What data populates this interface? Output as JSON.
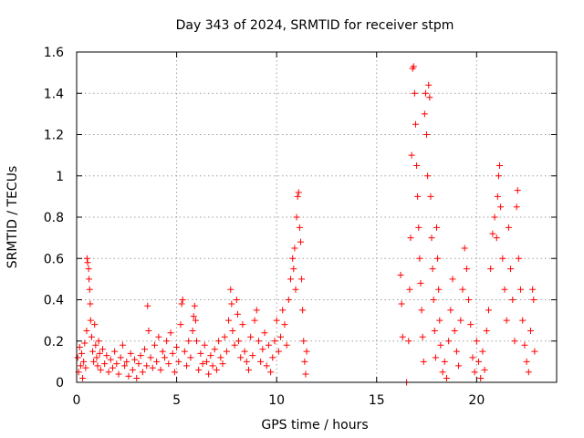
{
  "chart_data": {
    "type": "scatter",
    "title": "Day 343 of 2024, SRMTID for receiver stpm",
    "xlabel": "GPS time / hours",
    "ylabel": "SRMTID / TECUs",
    "xlim": [
      0,
      24
    ],
    "ylim": [
      0,
      1.6
    ],
    "xticks": [
      0,
      5,
      10,
      15,
      20
    ],
    "xtick_labels": [
      "0",
      "5",
      "10",
      "15",
      "20"
    ],
    "yticks": [
      0,
      0.2,
      0.4,
      0.6,
      0.8,
      1,
      1.2,
      1.4,
      1.6
    ],
    "ytick_labels": [
      "0",
      "0.2",
      "0.4",
      "0.6",
      "0.8",
      "1",
      "1.2",
      "1.4",
      "1.6"
    ],
    "grid": true,
    "marker": "plus",
    "color": "#ff0000",
    "series": [
      {
        "name": "SRMTID",
        "points": [
          [
            0.05,
            0.12
          ],
          [
            0.1,
            0.05
          ],
          [
            0.15,
            0.17
          ],
          [
            0.2,
            0.08
          ],
          [
            0.25,
            0.14
          ],
          [
            0.3,
            0.02
          ],
          [
            0.35,
            0.1
          ],
          [
            0.4,
            0.19
          ],
          [
            0.45,
            0.07
          ],
          [
            0.5,
            0.25
          ],
          [
            0.52,
            0.6
          ],
          [
            0.55,
            0.58
          ],
          [
            0.6,
            0.55
          ],
          [
            0.62,
            0.5
          ],
          [
            0.65,
            0.45
          ],
          [
            0.68,
            0.38
          ],
          [
            0.7,
            0.3
          ],
          [
            0.75,
            0.22
          ],
          [
            0.8,
            0.15
          ],
          [
            0.85,
            0.1
          ],
          [
            0.9,
            0.28
          ],
          [
            0.95,
            0.18
          ],
          [
            1.0,
            0.12
          ],
          [
            1.05,
            0.08
          ],
          [
            1.1,
            0.2
          ],
          [
            1.15,
            0.14
          ],
          [
            1.2,
            0.06
          ],
          [
            1.3,
            0.16
          ],
          [
            1.4,
            0.09
          ],
          [
            1.5,
            0.13
          ],
          [
            1.6,
            0.05
          ],
          [
            1.7,
            0.11
          ],
          [
            1.8,
            0.07
          ],
          [
            1.9,
            0.15
          ],
          [
            2.0,
            0.09
          ],
          [
            2.1,
            0.04
          ],
          [
            2.2,
            0.12
          ],
          [
            2.3,
            0.18
          ],
          [
            2.4,
            0.08
          ],
          [
            2.5,
            0.1
          ],
          [
            2.6,
            0.03
          ],
          [
            2.7,
            0.14
          ],
          [
            2.8,
            0.06
          ],
          [
            2.9,
            0.11
          ],
          [
            3.0,
            0.02
          ],
          [
            3.1,
            0.09
          ],
          [
            3.2,
            0.13
          ],
          [
            3.3,
            0.05
          ],
          [
            3.4,
            0.16
          ],
          [
            3.5,
            0.08
          ],
          [
            3.55,
            0.37
          ],
          [
            3.6,
            0.25
          ],
          [
            3.7,
            0.12
          ],
          [
            3.8,
            0.07
          ],
          [
            3.9,
            0.18
          ],
          [
            4.0,
            0.1
          ],
          [
            4.1,
            0.22
          ],
          [
            4.2,
            0.06
          ],
          [
            4.3,
            0.15
          ],
          [
            4.4,
            0.12
          ],
          [
            4.5,
            0.2
          ],
          [
            4.6,
            0.09
          ],
          [
            4.7,
            0.24
          ],
          [
            4.8,
            0.14
          ],
          [
            4.9,
            0.05
          ],
          [
            5.0,
            0.17
          ],
          [
            5.1,
            0.1
          ],
          [
            5.2,
            0.28
          ],
          [
            5.25,
            0.38
          ],
          [
            5.3,
            0.4
          ],
          [
            5.4,
            0.15
          ],
          [
            5.5,
            0.08
          ],
          [
            5.6,
            0.2
          ],
          [
            5.7,
            0.12
          ],
          [
            5.8,
            0.25
          ],
          [
            5.85,
            0.32
          ],
          [
            5.9,
            0.37
          ],
          [
            5.95,
            0.3
          ],
          [
            6.0,
            0.2
          ],
          [
            6.1,
            0.06
          ],
          [
            6.2,
            0.14
          ],
          [
            6.3,
            0.09
          ],
          [
            6.4,
            0.18
          ],
          [
            6.5,
            0.1
          ],
          [
            6.6,
            0.04
          ],
          [
            6.7,
            0.13
          ],
          [
            6.8,
            0.08
          ],
          [
            6.9,
            0.16
          ],
          [
            7.0,
            0.06
          ],
          [
            7.1,
            0.2
          ],
          [
            7.2,
            0.12
          ],
          [
            7.3,
            0.09
          ],
          [
            7.4,
            0.22
          ],
          [
            7.5,
            0.15
          ],
          [
            7.6,
            0.3
          ],
          [
            7.7,
            0.45
          ],
          [
            7.75,
            0.38
          ],
          [
            7.8,
            0.25
          ],
          [
            7.9,
            0.18
          ],
          [
            8.0,
            0.4
          ],
          [
            8.05,
            0.33
          ],
          [
            8.1,
            0.2
          ],
          [
            8.2,
            0.12
          ],
          [
            8.3,
            0.28
          ],
          [
            8.4,
            0.15
          ],
          [
            8.5,
            0.1
          ],
          [
            8.6,
            0.06
          ],
          [
            8.7,
            0.22
          ],
          [
            8.8,
            0.13
          ],
          [
            8.9,
            0.3
          ],
          [
            9.0,
            0.35
          ],
          [
            9.1,
            0.2
          ],
          [
            9.2,
            0.1
          ],
          [
            9.3,
            0.16
          ],
          [
            9.4,
            0.24
          ],
          [
            9.5,
            0.08
          ],
          [
            9.6,
            0.18
          ],
          [
            9.7,
            0.05
          ],
          [
            9.8,
            0.12
          ],
          [
            9.9,
            0.2
          ],
          [
            10.0,
            0.3
          ],
          [
            10.1,
            0.15
          ],
          [
            10.2,
            0.22
          ],
          [
            10.3,
            0.35
          ],
          [
            10.4,
            0.28
          ],
          [
            10.5,
            0.18
          ],
          [
            10.6,
            0.4
          ],
          [
            10.7,
            0.5
          ],
          [
            10.8,
            0.6
          ],
          [
            10.85,
            0.55
          ],
          [
            10.9,
            0.65
          ],
          [
            10.95,
            0.45
          ],
          [
            11.0,
            0.8
          ],
          [
            11.05,
            0.9
          ],
          [
            11.1,
            0.92
          ],
          [
            11.15,
            0.75
          ],
          [
            11.2,
            0.68
          ],
          [
            11.25,
            0.5
          ],
          [
            11.3,
            0.35
          ],
          [
            11.35,
            0.2
          ],
          [
            11.4,
            0.1
          ],
          [
            11.45,
            0.04
          ],
          [
            11.5,
            0.15
          ],
          [
            16.2,
            0.52
          ],
          [
            16.25,
            0.38
          ],
          [
            16.3,
            0.22
          ],
          [
            16.5,
            0.0
          ],
          [
            16.6,
            0.2
          ],
          [
            16.65,
            0.45
          ],
          [
            16.7,
            0.7
          ],
          [
            16.75,
            1.1
          ],
          [
            16.8,
            1.52
          ],
          [
            16.85,
            1.53
          ],
          [
            16.9,
            1.4
          ],
          [
            16.95,
            1.25
          ],
          [
            17.0,
            1.05
          ],
          [
            17.05,
            0.9
          ],
          [
            17.1,
            0.75
          ],
          [
            17.15,
            0.6
          ],
          [
            17.2,
            0.48
          ],
          [
            17.25,
            0.35
          ],
          [
            17.3,
            0.22
          ],
          [
            17.35,
            0.1
          ],
          [
            17.4,
            1.3
          ],
          [
            17.45,
            1.4
          ],
          [
            17.5,
            1.2
          ],
          [
            17.55,
            1.0
          ],
          [
            17.6,
            1.44
          ],
          [
            17.65,
            1.38
          ],
          [
            17.7,
            0.9
          ],
          [
            17.75,
            0.7
          ],
          [
            17.8,
            0.55
          ],
          [
            17.85,
            0.4
          ],
          [
            17.9,
            0.25
          ],
          [
            17.95,
            0.12
          ],
          [
            18.0,
            0.75
          ],
          [
            18.05,
            0.6
          ],
          [
            18.1,
            0.45
          ],
          [
            18.15,
            0.3
          ],
          [
            18.2,
            0.18
          ],
          [
            18.3,
            0.05
          ],
          [
            18.4,
            0.1
          ],
          [
            18.5,
            0.02
          ],
          [
            18.6,
            0.2
          ],
          [
            18.7,
            0.35
          ],
          [
            18.8,
            0.5
          ],
          [
            18.9,
            0.25
          ],
          [
            19.0,
            0.15
          ],
          [
            19.1,
            0.08
          ],
          [
            19.2,
            0.3
          ],
          [
            19.3,
            0.45
          ],
          [
            19.4,
            0.65
          ],
          [
            19.5,
            0.55
          ],
          [
            19.6,
            0.4
          ],
          [
            19.7,
            0.28
          ],
          [
            19.8,
            0.12
          ],
          [
            19.9,
            0.05
          ],
          [
            20.0,
            0.2
          ],
          [
            20.1,
            0.1
          ],
          [
            20.2,
            0.02
          ],
          [
            20.3,
            0.15
          ],
          [
            20.4,
            0.06
          ],
          [
            20.5,
            0.25
          ],
          [
            20.6,
            0.35
          ],
          [
            20.7,
            0.55
          ],
          [
            20.8,
            0.72
          ],
          [
            20.9,
            0.8
          ],
          [
            21.0,
            0.7
          ],
          [
            21.05,
            0.9
          ],
          [
            21.1,
            1.0
          ],
          [
            21.15,
            1.05
          ],
          [
            21.2,
            0.85
          ],
          [
            21.3,
            0.6
          ],
          [
            21.4,
            0.45
          ],
          [
            21.5,
            0.3
          ],
          [
            21.6,
            0.75
          ],
          [
            21.7,
            0.55
          ],
          [
            21.8,
            0.4
          ],
          [
            21.9,
            0.2
          ],
          [
            22.0,
            0.85
          ],
          [
            22.05,
            0.93
          ],
          [
            22.1,
            0.6
          ],
          [
            22.2,
            0.45
          ],
          [
            22.3,
            0.3
          ],
          [
            22.4,
            0.18
          ],
          [
            22.5,
            0.1
          ],
          [
            22.6,
            0.05
          ],
          [
            22.7,
            0.25
          ],
          [
            22.8,
            0.45
          ],
          [
            22.85,
            0.4
          ],
          [
            22.9,
            0.15
          ]
        ]
      }
    ]
  }
}
